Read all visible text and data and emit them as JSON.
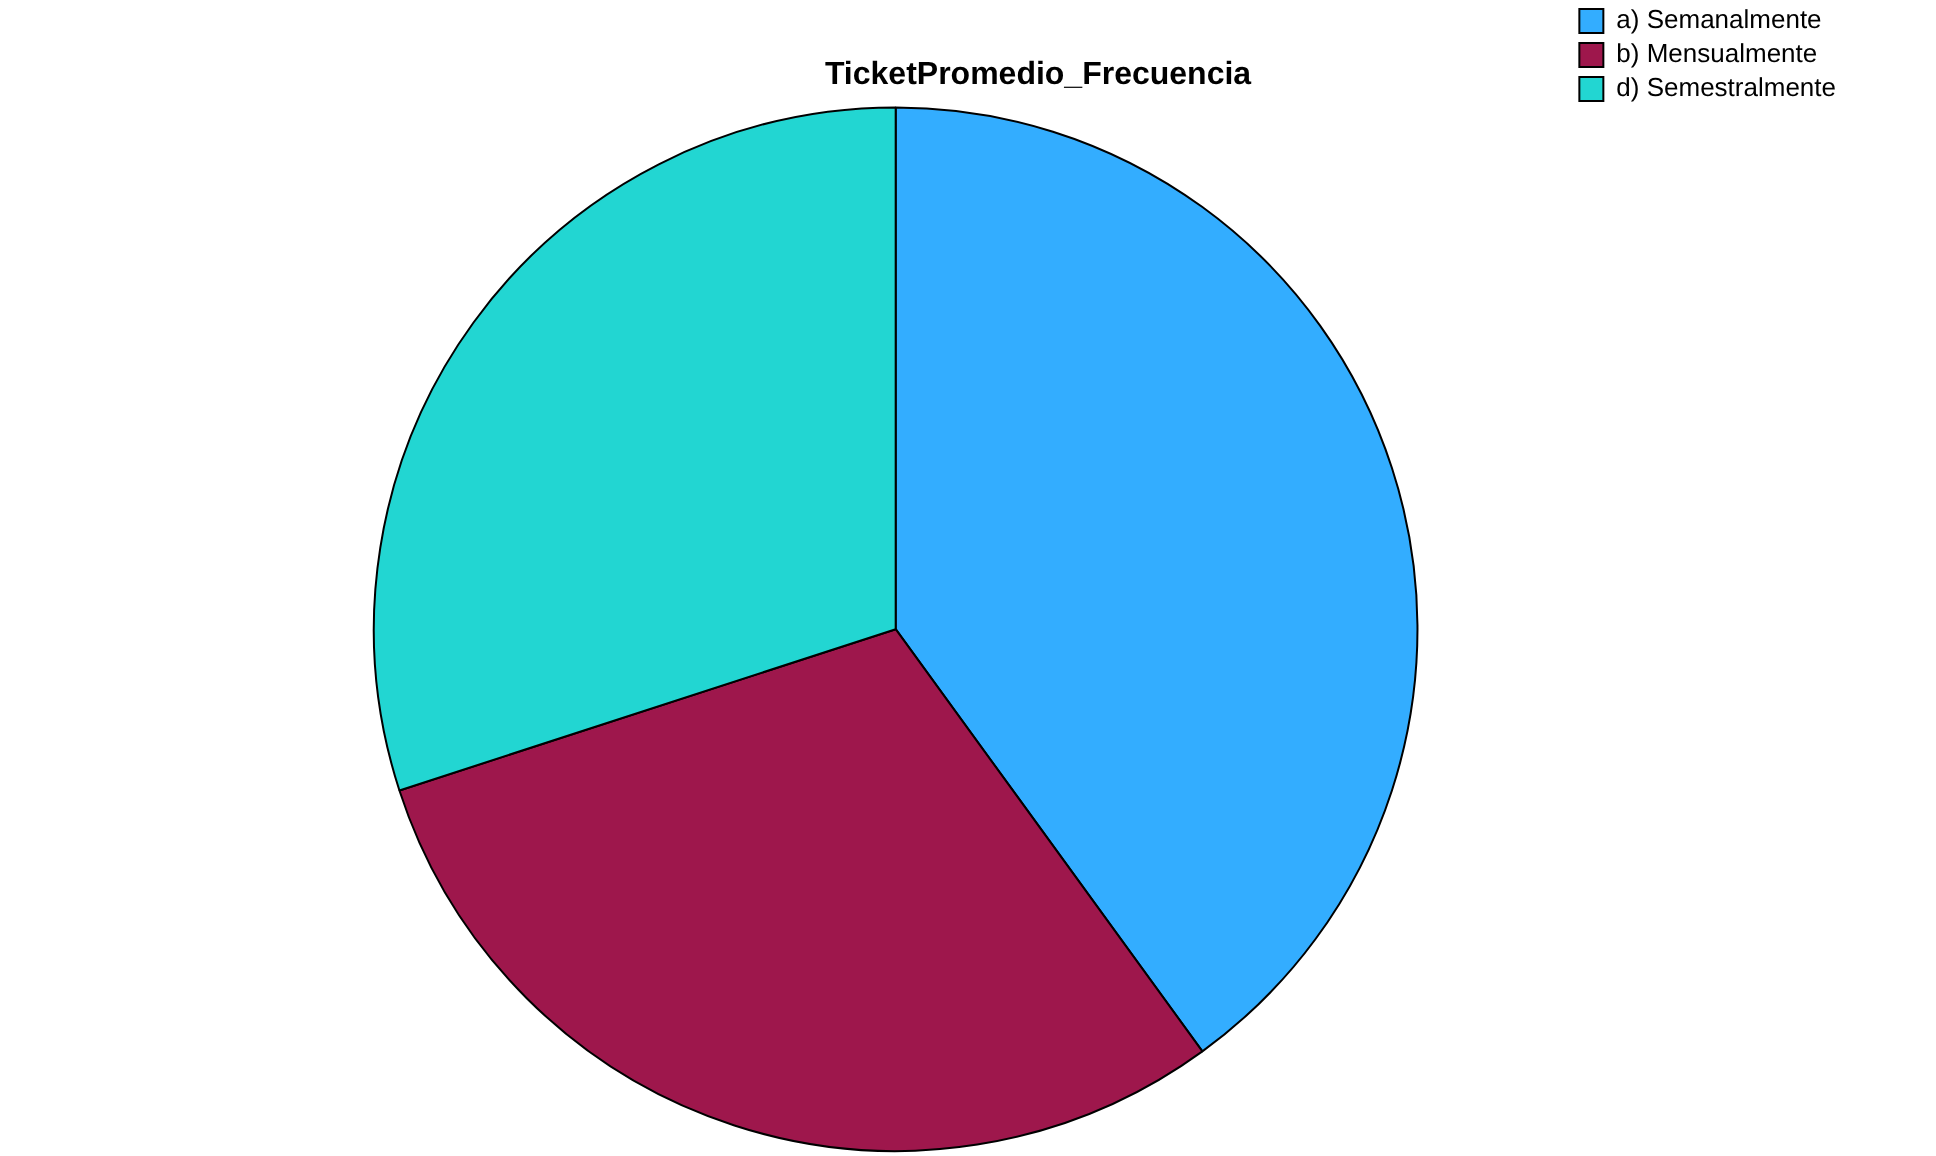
{
  "chart_data": {
    "type": "pie",
    "title": "TicketPromedio_Frecuencia",
    "categories": [
      "a) Semanalmente",
      "b) Mensualmente",
      "d) Semestralmente"
    ],
    "values": [
      40,
      30,
      30
    ],
    "colors": [
      "#33adff",
      "#9e174c",
      "#22d6d2"
    ],
    "legend": "top right"
  }
}
